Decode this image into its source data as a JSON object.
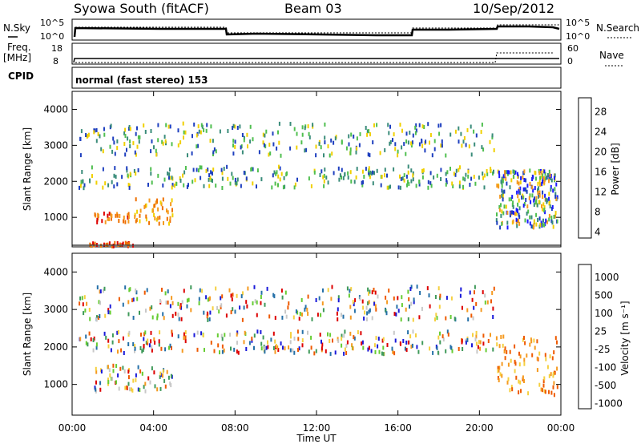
{
  "header": {
    "station": "Syowa South (fitACF)",
    "beam": "Beam 03",
    "date": "10/Sep/2012"
  },
  "status_panels": {
    "nsky_label": "N.Sky",
    "nsky_ticks": [
      "10^5",
      "10^0"
    ],
    "nsearch_label": "N.Search",
    "nsearch_ticks": [
      "10^5",
      "10^0"
    ],
    "freq_label": "Freq.",
    "freq_unit": "[MHz]",
    "freq_ticks": [
      "18",
      "8"
    ],
    "nave_label": "Nave",
    "nave_ticks": [
      "60",
      "0"
    ],
    "cpid_label": "CPID",
    "cpid_value": "normal (fast stereo) 153"
  },
  "chart_data": [
    {
      "type": "heatmap",
      "name": "Power",
      "ylabel": "Slant Range [km]",
      "yticks": [
        "4000",
        "3000",
        "2000",
        "1000"
      ],
      "ylim": [
        180,
        4500
      ],
      "colorbar_label": "Power [dB]",
      "colorbar_ticks": [
        "28",
        "24",
        "20",
        "16",
        "12",
        "8",
        "4"
      ],
      "colors": [
        "#1a1aff",
        "#1e3fbf",
        "#3a8c7a",
        "#4fbf4f",
        "#f0d000",
        "#f59a20",
        "#ee7000",
        "#dd0000"
      ],
      "clusters": [
        {
          "time_range_h": [
            0.3,
            20.7
          ],
          "range_km": [
            1800,
            2400
          ],
          "level": "medium-low"
        },
        {
          "time_range_h": [
            0.3,
            20.7
          ],
          "range_km": [
            2700,
            3600
          ],
          "level": "medium-low"
        },
        {
          "time_range_h": [
            1.0,
            2.8
          ],
          "range_km": [
            850,
            1100
          ],
          "level": "high"
        },
        {
          "time_range_h": [
            3.0,
            5.0
          ],
          "range_km": [
            800,
            1500
          ],
          "level": "medium-high"
        },
        {
          "time_range_h": [
            0.8,
            3.0
          ],
          "range_km": [
            180,
            280
          ],
          "level": "very high"
        },
        {
          "time_range_h": [
            20.8,
            23.8
          ],
          "range_km": [
            700,
            2300
          ],
          "level": "mixed"
        }
      ]
    },
    {
      "type": "heatmap",
      "name": "Velocity",
      "ylabel": "Slant Range [km]",
      "yticks": [
        "4000",
        "3000",
        "2000",
        "1000"
      ],
      "ylim": [
        180,
        4500
      ],
      "colorbar_label": "Velocity [m s⁻¹]",
      "colorbar_ticks": [
        "1000",
        "500",
        "100",
        "25",
        "-25",
        "-100",
        "-500",
        "-1000"
      ],
      "colors": [
        "#1a1ad9",
        "#2570a8",
        "#3f9a5a",
        "#66cc33",
        "#c8c8c8",
        "#f5d040",
        "#f59a20",
        "#ee5a00",
        "#dd0000"
      ],
      "clusters": [
        {
          "time_range_h": [
            0.3,
            20.7
          ],
          "range_km": [
            1800,
            2400
          ],
          "level": "mixed"
        },
        {
          "time_range_h": [
            0.3,
            20.7
          ],
          "range_km": [
            2700,
            3600
          ],
          "level": "mixed"
        },
        {
          "time_range_h": [
            1.0,
            5.0
          ],
          "range_km": [
            800,
            1500
          ],
          "level": "mixed"
        },
        {
          "time_range_h": [
            20.8,
            23.8
          ],
          "range_km": [
            700,
            2300
          ],
          "level": "negative"
        }
      ]
    }
  ],
  "xaxis": {
    "label": "Time UT",
    "ticks": [
      "00:00",
      "04:00",
      "08:00",
      "12:00",
      "16:00",
      "20:00",
      "00:00"
    ]
  }
}
